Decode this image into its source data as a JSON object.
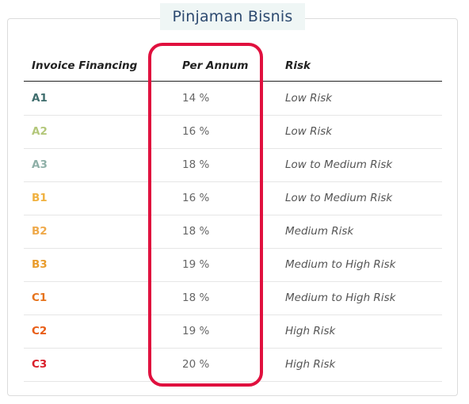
{
  "title": "Pinjaman Bisnis",
  "table": {
    "headers": {
      "grade": "Invoice Financing",
      "rate": "Per Annum",
      "risk": "Risk"
    },
    "rows": [
      {
        "grade": "A1",
        "rate": "14 %",
        "risk": "Low Risk",
        "grade_color": "#3f6d6d"
      },
      {
        "grade": "A2",
        "rate": "16 %",
        "risk": "Low Risk",
        "grade_color": "#b3c77a"
      },
      {
        "grade": "A3",
        "rate": "18 %",
        "risk": "Low to Medium Risk",
        "grade_color": "#8fb0a8"
      },
      {
        "grade": "B1",
        "rate": "16 %",
        "risk": "Low to Medium Risk",
        "grade_color": "#f0b13f"
      },
      {
        "grade": "B2",
        "rate": "18 %",
        "risk": "Medium Risk",
        "grade_color": "#efa94a"
      },
      {
        "grade": "B3",
        "rate": "19 %",
        "risk": "Medium to High Risk",
        "grade_color": "#e99c2c"
      },
      {
        "grade": "C1",
        "rate": "18 %",
        "risk": "Medium to High Risk",
        "grade_color": "#e6731c"
      },
      {
        "grade": "C2",
        "rate": "19 %",
        "risk": "High Risk",
        "grade_color": "#e85d16"
      },
      {
        "grade": "C3",
        "rate": "20 %",
        "risk": "High Risk",
        "grade_color": "#d9202b"
      }
    ]
  },
  "highlight_color": "#e0103e"
}
